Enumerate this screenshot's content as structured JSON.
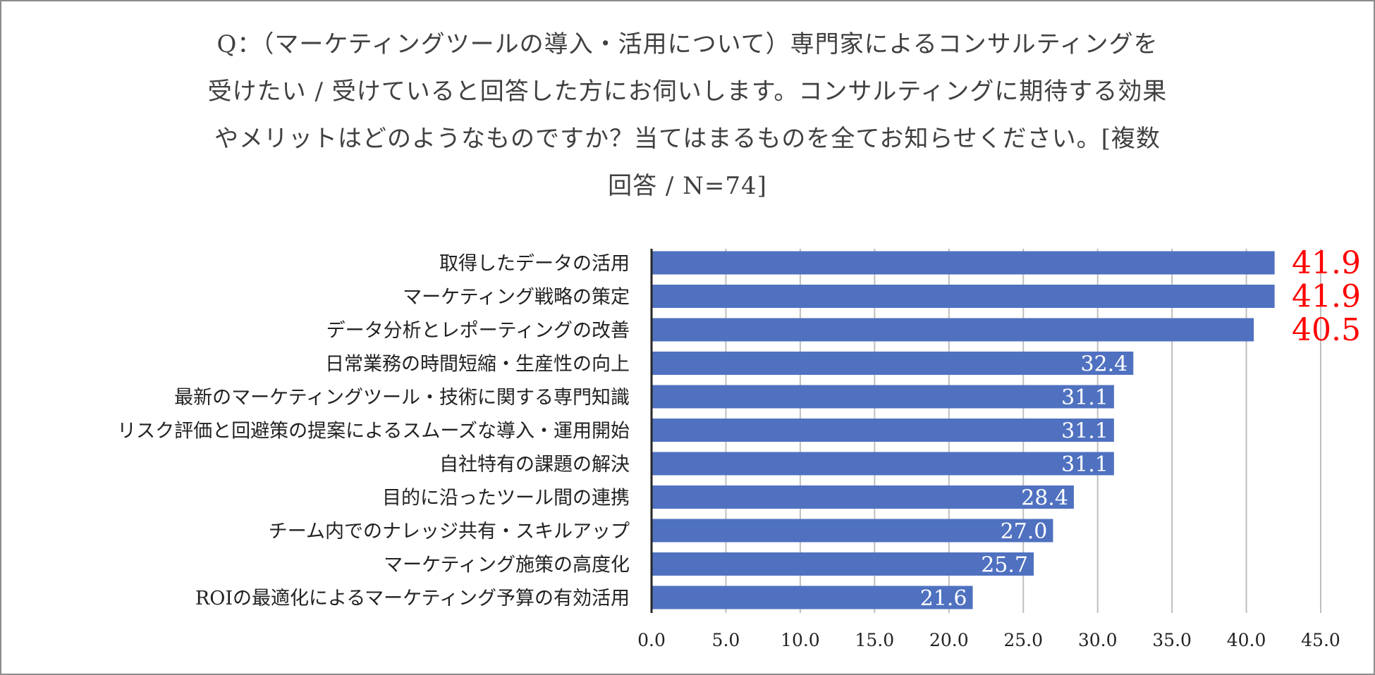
{
  "title_lines": [
    "Q：（マーケティングツールの導入・活用について）専門家によるコンサルティングを",
    "受けたい / 受けていると回答した方にお伺いします。コンサルティングに期待する効果",
    "やメリットはどのようなものですか？当てはまるものを全てお知らせください。[複数",
    "回答 / N=74]"
  ],
  "chart_data": {
    "type": "bar",
    "orientation": "horizontal",
    "categories": [
      "取得したデータの活用",
      "マーケティング戦略の策定",
      "データ分析とレポーティングの改善",
      "日常業務の時間短縮・生産性の向上",
      "最新のマーケティングツール・技術に関する専門知識",
      "リスク評価と回避策の提案によるスムーズな導入・運用開始",
      "自社特有の課題の解決",
      "目的に沿ったツール間の連携",
      "チーム内でのナレッジ共有・スキルアップ",
      "マーケティング施策の高度化",
      "ROIの最適化によるマーケティング予算の有効活用"
    ],
    "values": [
      41.9,
      41.9,
      40.5,
      32.4,
      31.1,
      31.1,
      31.1,
      28.4,
      27.0,
      25.7,
      21.6
    ],
    "value_labels": [
      "41.9",
      "41.9",
      "40.5",
      "32.4",
      "31.1",
      "31.1",
      "31.1",
      "28.4",
      "27.0",
      "25.7",
      "21.6"
    ],
    "highlight_top_n": 3,
    "xlim": [
      0,
      45
    ],
    "ticks": [
      0,
      5,
      10,
      15,
      20,
      25,
      30,
      35,
      40,
      45
    ],
    "tick_labels": [
      "0.0",
      "5.0",
      "10.0",
      "15.0",
      "20.0",
      "25.0",
      "30.0",
      "35.0",
      "40.0",
      "45.0"
    ],
    "grid": true,
    "bar_color": "#4f71c0",
    "grid_color": "#bfbfbf",
    "highlight_color": "#ff0000",
    "inner_label_color": "#ffffff",
    "xlabel": "",
    "ylabel": ""
  }
}
